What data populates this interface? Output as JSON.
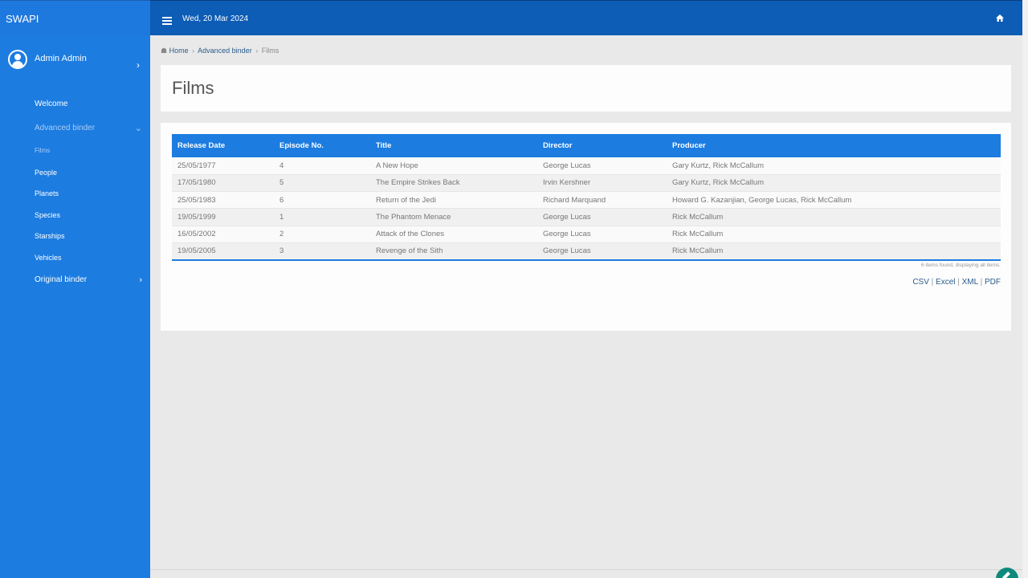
{
  "app": {
    "brand": "SWAPI"
  },
  "topbar": {
    "date": "Wed, 20 Mar 2024"
  },
  "user": {
    "name": "Admin Admin"
  },
  "sidebar": {
    "items": [
      {
        "label": "Welcome"
      },
      {
        "label": "Advanced binder"
      },
      {
        "label": "Original binder"
      }
    ],
    "subitems": [
      {
        "label": "Films"
      },
      {
        "label": "People"
      },
      {
        "label": "Planets"
      },
      {
        "label": "Species"
      },
      {
        "label": "Starships"
      },
      {
        "label": "Vehicles"
      }
    ]
  },
  "breadcrumb": {
    "home": "Home",
    "parent": "Advanced binder",
    "current": "Films"
  },
  "page": {
    "title": "Films"
  },
  "table": {
    "headers": [
      "Release Date",
      "Episode No.",
      "Title",
      "Director",
      "Producer"
    ],
    "rows": [
      [
        "25/05/1977",
        "4",
        "A New Hope",
        "George Lucas",
        "Gary Kurtz, Rick McCallum"
      ],
      [
        "17/05/1980",
        "5",
        "The Empire Strikes Back",
        "Irvin Kershner",
        "Gary Kurtz, Rick McCallum"
      ],
      [
        "25/05/1983",
        "6",
        "Return of the Jedi",
        "Richard Marquand",
        "Howard G. Kazanjian, George Lucas, Rick McCallum"
      ],
      [
        "19/05/1999",
        "1",
        "The Phantom Menace",
        "George Lucas",
        "Rick McCallum"
      ],
      [
        "16/05/2002",
        "2",
        "Attack of the Clones",
        "George Lucas",
        "Rick McCallum"
      ],
      [
        "19/05/2005",
        "3",
        "Revenge of the Sith",
        "George Lucas",
        "Rick McCallum"
      ]
    ],
    "status": "6 items found, displaying all items.",
    "exports": [
      "CSV",
      "Excel",
      "XML",
      "PDF"
    ]
  },
  "colors": {
    "sidebar": "#1c7ce0",
    "topbar": "#0d5cb5",
    "table_header": "#1c7ce0"
  }
}
